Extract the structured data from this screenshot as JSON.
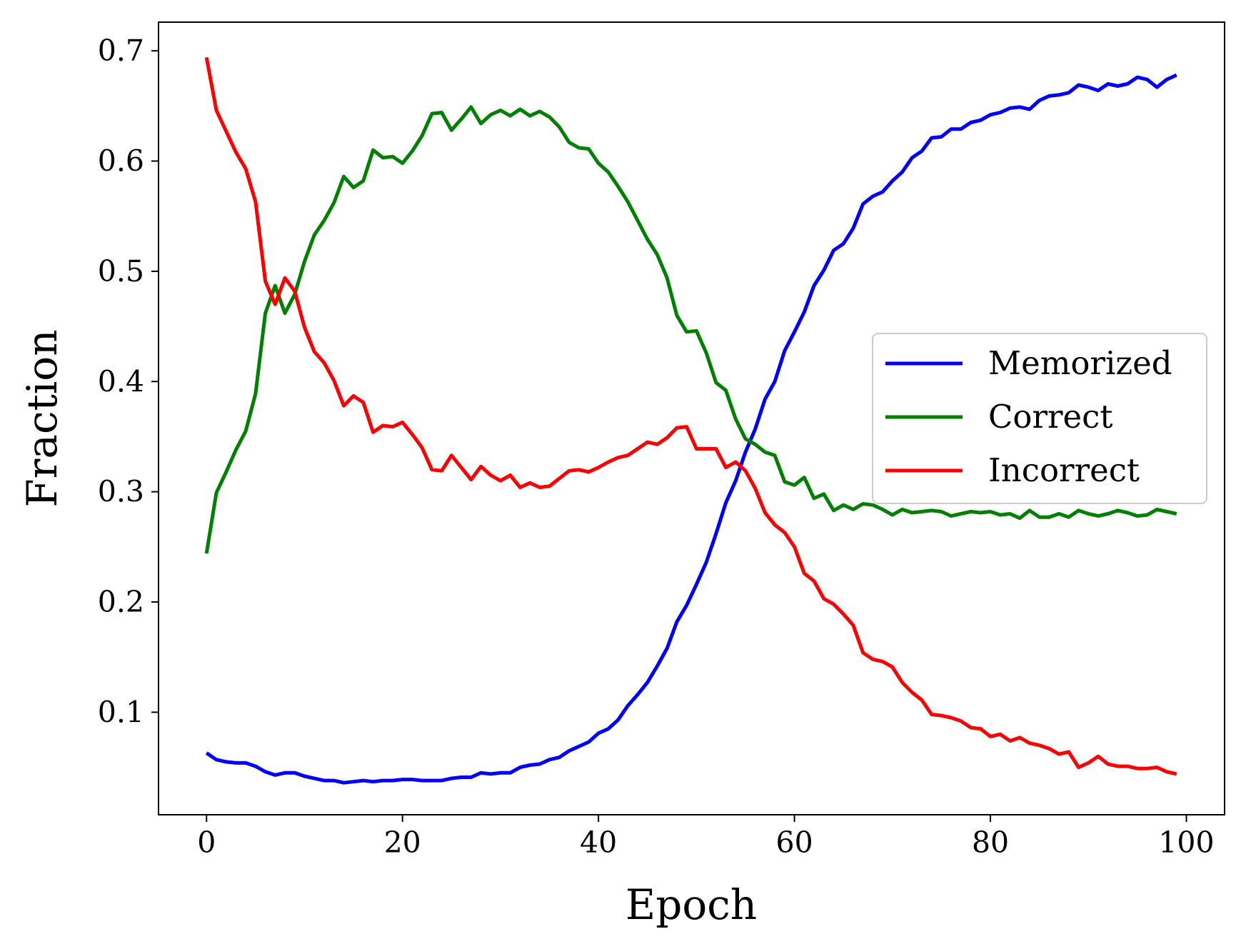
{
  "chart_data": {
    "type": "line",
    "title": "",
    "xlabel": "Epoch",
    "ylabel": "Fraction",
    "xlim": [
      -4.9,
      103.9
    ],
    "ylim": [
      0.007,
      0.726
    ],
    "xticks": [
      "0",
      "20",
      "40",
      "60",
      "80",
      "100"
    ],
    "yticks": [
      "0.1",
      "0.2",
      "0.3",
      "0.4",
      "0.5",
      "0.6",
      "0.7"
    ],
    "grid": false,
    "legend_position": "center-right",
    "x": [
      0,
      1,
      2,
      3,
      4,
      5,
      6,
      7,
      8,
      9,
      10,
      11,
      12,
      13,
      14,
      15,
      16,
      17,
      18,
      19,
      20,
      21,
      22,
      23,
      24,
      25,
      26,
      27,
      28,
      29,
      30,
      31,
      32,
      33,
      34,
      35,
      36,
      37,
      38,
      39,
      40,
      41,
      42,
      43,
      44,
      45,
      46,
      47,
      48,
      49,
      50,
      51,
      52,
      53,
      54,
      55,
      56,
      57,
      58,
      59,
      60,
      61,
      62,
      63,
      64,
      65,
      66,
      67,
      68,
      69,
      70,
      71,
      72,
      73,
      74,
      75,
      76,
      77,
      78,
      79,
      80,
      81,
      82,
      83,
      84,
      85,
      86,
      87,
      88,
      89,
      90,
      91,
      92,
      93,
      94,
      95,
      96,
      97,
      98,
      99
    ],
    "series": [
      {
        "name": "Memorized",
        "color": "#0000ff",
        "values": [
          0.063,
          0.057,
          0.055,
          0.054,
          0.054,
          0.051,
          0.046,
          0.043,
          0.045,
          0.045,
          0.042,
          0.04,
          0.038,
          0.038,
          0.036,
          0.037,
          0.038,
          0.037,
          0.038,
          0.038,
          0.039,
          0.039,
          0.038,
          0.038,
          0.038,
          0.04,
          0.041,
          0.041,
          0.045,
          0.044,
          0.045,
          0.045,
          0.05,
          0.052,
          0.053,
          0.057,
          0.059,
          0.065,
          0.069,
          0.073,
          0.081,
          0.085,
          0.093,
          0.106,
          0.116,
          0.127,
          0.142,
          0.158,
          0.182,
          0.197,
          0.216,
          0.236,
          0.262,
          0.29,
          0.31,
          0.336,
          0.357,
          0.384,
          0.4,
          0.428,
          0.445,
          0.463,
          0.487,
          0.501,
          0.519,
          0.525,
          0.539,
          0.561,
          0.568,
          0.572,
          0.582,
          0.59,
          0.603,
          0.609,
          0.621,
          0.622,
          0.629,
          0.629,
          0.635,
          0.637,
          0.642,
          0.644,
          0.648,
          0.649,
          0.647,
          0.655,
          0.659,
          0.66,
          0.662,
          0.669,
          0.667,
          0.664,
          0.67,
          0.668,
          0.67,
          0.676,
          0.674,
          0.667,
          0.674,
          0.678
        ]
      },
      {
        "name": "Correct",
        "color": "#008000",
        "values": [
          0.244,
          0.299,
          0.318,
          0.338,
          0.355,
          0.389,
          0.462,
          0.487,
          0.462,
          0.479,
          0.509,
          0.533,
          0.546,
          0.562,
          0.586,
          0.576,
          0.582,
          0.61,
          0.603,
          0.604,
          0.598,
          0.609,
          0.623,
          0.643,
          0.644,
          0.628,
          0.638,
          0.649,
          0.634,
          0.642,
          0.646,
          0.641,
          0.647,
          0.641,
          0.645,
          0.64,
          0.631,
          0.617,
          0.612,
          0.611,
          0.598,
          0.59,
          0.577,
          0.563,
          0.546,
          0.529,
          0.515,
          0.494,
          0.46,
          0.445,
          0.446,
          0.426,
          0.399,
          0.392,
          0.366,
          0.348,
          0.343,
          0.336,
          0.333,
          0.309,
          0.306,
          0.313,
          0.294,
          0.298,
          0.283,
          0.288,
          0.284,
          0.289,
          0.288,
          0.284,
          0.279,
          0.284,
          0.281,
          0.282,
          0.283,
          0.282,
          0.278,
          0.28,
          0.282,
          0.281,
          0.282,
          0.279,
          0.28,
          0.276,
          0.283,
          0.277,
          0.277,
          0.28,
          0.277,
          0.283,
          0.28,
          0.278,
          0.28,
          0.283,
          0.281,
          0.278,
          0.279,
          0.284,
          0.282,
          0.28
        ]
      },
      {
        "name": "Incorrect",
        "color": "#ff0000",
        "values": [
          0.694,
          0.646,
          0.627,
          0.608,
          0.593,
          0.563,
          0.491,
          0.47,
          0.494,
          0.482,
          0.449,
          0.427,
          0.417,
          0.401,
          0.378,
          0.387,
          0.381,
          0.354,
          0.36,
          0.359,
          0.363,
          0.352,
          0.34,
          0.32,
          0.319,
          0.333,
          0.322,
          0.311,
          0.323,
          0.315,
          0.31,
          0.315,
          0.304,
          0.308,
          0.304,
          0.305,
          0.312,
          0.319,
          0.32,
          0.318,
          0.322,
          0.327,
          0.331,
          0.333,
          0.339,
          0.345,
          0.343,
          0.349,
          0.358,
          0.359,
          0.339,
          0.339,
          0.339,
          0.322,
          0.327,
          0.319,
          0.303,
          0.281,
          0.27,
          0.263,
          0.25,
          0.226,
          0.219,
          0.203,
          0.198,
          0.189,
          0.179,
          0.154,
          0.148,
          0.146,
          0.141,
          0.127,
          0.118,
          0.111,
          0.098,
          0.097,
          0.095,
          0.092,
          0.086,
          0.085,
          0.078,
          0.08,
          0.074,
          0.077,
          0.072,
          0.07,
          0.067,
          0.062,
          0.064,
          0.05,
          0.054,
          0.06,
          0.053,
          0.051,
          0.051,
          0.049,
          0.049,
          0.05,
          0.046,
          0.044
        ]
      }
    ]
  }
}
